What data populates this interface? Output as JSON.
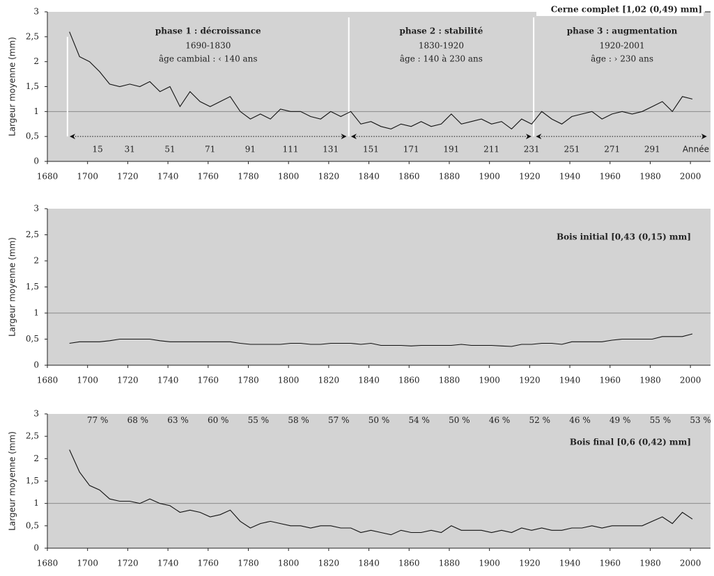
{
  "chart_data": [
    {
      "type": "line",
      "ylabel": "Largeur moyenne (mm)",
      "legend": "above-right",
      "xlim": [
        1680,
        2010
      ],
      "ylim": [
        0,
        3
      ],
      "xticks": [
        1680,
        1700,
        1720,
        1740,
        1760,
        1780,
        1800,
        1820,
        1840,
        1860,
        1880,
        1900,
        1920,
        1940,
        1960,
        1980,
        2000
      ],
      "yticks": [
        0,
        {
          "value": 0.5,
          "label": "0,5"
        },
        1,
        {
          "value": 1.5,
          "label": "1,5"
        },
        2,
        {
          "value": 2.5,
          "label": "2,5"
        },
        3
      ],
      "hline": 1,
      "x": [
        1691,
        1696,
        1701,
        1706,
        1711,
        1716,
        1721,
        1726,
        1731,
        1736,
        1741,
        1746,
        1751,
        1756,
        1761,
        1766,
        1771,
        1776,
        1781,
        1786,
        1791,
        1796,
        1801,
        1806,
        1811,
        1816,
        1821,
        1826,
        1831,
        1836,
        1841,
        1846,
        1851,
        1856,
        1861,
        1866,
        1871,
        1876,
        1881,
        1886,
        1891,
        1896,
        1901,
        1906,
        1911,
        1916,
        1921,
        1926,
        1931,
        1936,
        1941,
        1946,
        1951,
        1956,
        1961,
        1966,
        1971,
        1976,
        1981,
        1986,
        1991,
        1996,
        2001
      ],
      "series": [
        {
          "name": "Cerne complet [1,02 (0,49) mm]",
          "color": "#111111",
          "values": [
            2.6,
            2.1,
            2.0,
            1.8,
            1.55,
            1.5,
            1.55,
            1.5,
            1.6,
            1.4,
            1.5,
            1.1,
            1.4,
            1.2,
            1.1,
            1.2,
            1.3,
            1.0,
            0.85,
            0.95,
            0.85,
            1.05,
            1.0,
            1.0,
            0.9,
            0.85,
            1.0,
            0.9,
            1.0,
            0.75,
            0.8,
            0.7,
            0.65,
            0.75,
            0.7,
            0.8,
            0.7,
            0.75,
            0.95,
            0.75,
            0.8,
            0.85,
            0.75,
            0.8,
            0.65,
            0.85,
            0.75,
            1.0,
            0.85,
            0.75,
            0.9,
            0.95,
            1.0,
            0.85,
            0.95,
            1.0,
            0.95,
            1.0,
            1.1,
            1.2,
            1.0,
            1.3,
            1.25
          ]
        }
      ],
      "boundaries": [
        1690,
        1830,
        1922
      ],
      "phases": [
        {
          "title": "phase 1 : décroissance",
          "period": "1690-1830",
          "age": "âge cambial : ‹ 140 ans"
        },
        {
          "title": "phase 2 : stabilité",
          "period": "1830-1920",
          "age": "âge : 140 à 230 ans"
        },
        {
          "title": "phase 3 : augmentation",
          "period": "1920-2001",
          "age": "âge : › 230 ans"
        }
      ],
      "ages": [
        15,
        31,
        51,
        71,
        91,
        111,
        131,
        151,
        171,
        191,
        211,
        231,
        251,
        271,
        291
      ],
      "age_axis_label": "Année"
    },
    {
      "type": "line",
      "ylabel": "Largeur moyenne (mm)",
      "legend": "top-right",
      "xlim": [
        1680,
        2010
      ],
      "ylim": [
        0,
        3
      ],
      "xticks": [
        1680,
        1700,
        1720,
        1740,
        1760,
        1780,
        1800,
        1820,
        1840,
        1860,
        1880,
        1900,
        1920,
        1940,
        1960,
        1980,
        2000
      ],
      "yticks": [
        0,
        {
          "value": 0.5,
          "label": "0,5"
        },
        1,
        {
          "value": 1.5,
          "label": "1,5"
        },
        2,
        {
          "value": 2.5,
          "label": "2,5"
        },
        3
      ],
      "hline": 1,
      "x": [
        1691,
        1696,
        1701,
        1706,
        1711,
        1716,
        1721,
        1726,
        1731,
        1736,
        1741,
        1746,
        1751,
        1756,
        1761,
        1766,
        1771,
        1776,
        1781,
        1786,
        1791,
        1796,
        1801,
        1806,
        1811,
        1816,
        1821,
        1826,
        1831,
        1836,
        1841,
        1846,
        1851,
        1856,
        1861,
        1866,
        1871,
        1876,
        1881,
        1886,
        1891,
        1896,
        1901,
        1906,
        1911,
        1916,
        1921,
        1926,
        1931,
        1936,
        1941,
        1946,
        1951,
        1956,
        1961,
        1966,
        1971,
        1976,
        1981,
        1986,
        1991,
        1996,
        2001
      ],
      "series": [
        {
          "name": "Bois initial [0,43 (0,15) mm]",
          "color": "#111111",
          "values": [
            0.42,
            0.45,
            0.45,
            0.45,
            0.47,
            0.5,
            0.5,
            0.5,
            0.5,
            0.47,
            0.45,
            0.45,
            0.45,
            0.45,
            0.45,
            0.45,
            0.45,
            0.42,
            0.4,
            0.4,
            0.4,
            0.4,
            0.42,
            0.42,
            0.4,
            0.4,
            0.42,
            0.42,
            0.42,
            0.4,
            0.42,
            0.38,
            0.38,
            0.38,
            0.37,
            0.38,
            0.38,
            0.38,
            0.38,
            0.4,
            0.38,
            0.38,
            0.38,
            0.37,
            0.36,
            0.4,
            0.4,
            0.42,
            0.42,
            0.4,
            0.45,
            0.45,
            0.45,
            0.45,
            0.48,
            0.5,
            0.5,
            0.5,
            0.5,
            0.55,
            0.55,
            0.55,
            0.6
          ]
        }
      ]
    },
    {
      "type": "line",
      "ylabel": "Largeur moyenne (mm)",
      "legend": "top-right",
      "xlim": [
        1680,
        2010
      ],
      "ylim": [
        0,
        3
      ],
      "xticks": [
        1680,
        1700,
        1720,
        1740,
        1760,
        1780,
        1800,
        1820,
        1840,
        1860,
        1880,
        1900,
        1920,
        1940,
        1960,
        1980,
        2000
      ],
      "yticks": [
        0,
        {
          "value": 0.5,
          "label": "0,5"
        },
        1,
        {
          "value": 1.5,
          "label": "1,5"
        },
        2,
        {
          "value": 2.5,
          "label": "2,5"
        },
        3
      ],
      "hline": 1,
      "x": [
        1691,
        1696,
        1701,
        1706,
        1711,
        1716,
        1721,
        1726,
        1731,
        1736,
        1741,
        1746,
        1751,
        1756,
        1761,
        1766,
        1771,
        1776,
        1781,
        1786,
        1791,
        1796,
        1801,
        1806,
        1811,
        1816,
        1821,
        1826,
        1831,
        1836,
        1841,
        1846,
        1851,
        1856,
        1861,
        1866,
        1871,
        1876,
        1881,
        1886,
        1891,
        1896,
        1901,
        1906,
        1911,
        1916,
        1921,
        1926,
        1931,
        1936,
        1941,
        1946,
        1951,
        1956,
        1961,
        1966,
        1971,
        1976,
        1981,
        1986,
        1991,
        1996,
        2001
      ],
      "series": [
        {
          "name": "Bois final [0,6 (0,42) mm]",
          "color": "#111111",
          "values": [
            2.2,
            1.7,
            1.4,
            1.3,
            1.1,
            1.05,
            1.05,
            1.0,
            1.1,
            1.0,
            0.95,
            0.8,
            0.85,
            0.8,
            0.7,
            0.75,
            0.85,
            0.6,
            0.45,
            0.55,
            0.6,
            0.55,
            0.5,
            0.5,
            0.45,
            0.5,
            0.5,
            0.45,
            0.45,
            0.35,
            0.4,
            0.35,
            0.3,
            0.4,
            0.35,
            0.35,
            0.4,
            0.35,
            0.5,
            0.4,
            0.4,
            0.4,
            0.35,
            0.4,
            0.35,
            0.45,
            0.4,
            0.45,
            0.4,
            0.4,
            0.45,
            0.45,
            0.5,
            0.45,
            0.5,
            0.5,
            0.5,
            0.5,
            0.6,
            0.7,
            0.55,
            0.8,
            0.65
          ]
        }
      ],
      "percent": {
        "x": [
          1705,
          1725,
          1745,
          1765,
          1785,
          1805,
          1825,
          1845,
          1865,
          1885,
          1905,
          1925,
          1945,
          1965,
          1985,
          2005
        ],
        "values": [
          77,
          68,
          63,
          60,
          55,
          58,
          57,
          50,
          54,
          50,
          46,
          52,
          46,
          49,
          55,
          53
        ],
        "value_labels": [
          "77 %",
          "68 %",
          "63 %",
          "60 %",
          "55 %",
          "58 %",
          "57 %",
          "50 %",
          "54 %",
          "50 %",
          "46 %",
          "52 %",
          "46 %",
          "49 %",
          "55 %",
          "53 %"
        ]
      }
    }
  ]
}
